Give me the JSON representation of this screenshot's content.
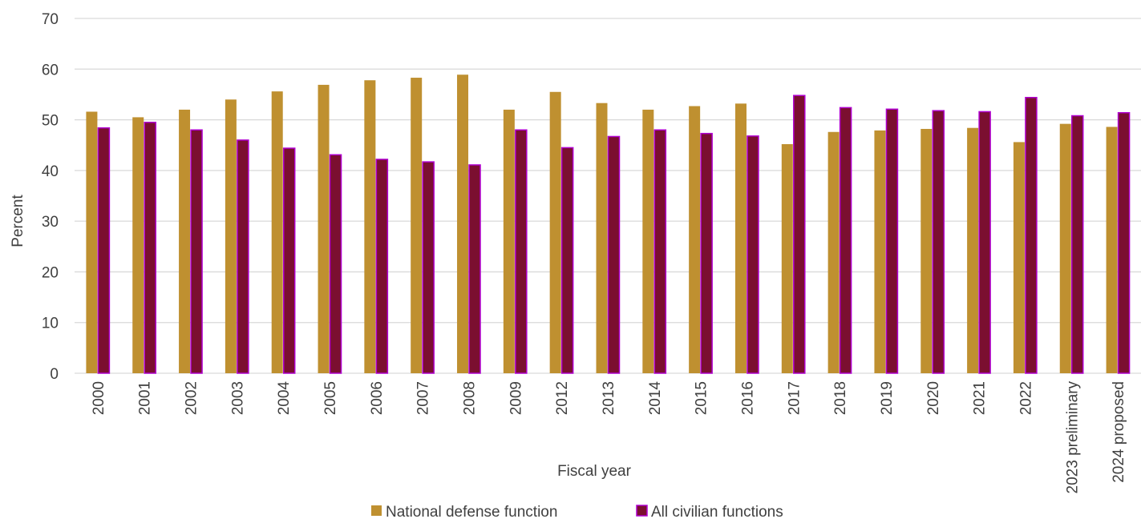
{
  "chart_data": {
    "type": "bar",
    "title": "",
    "xlabel": "Fiscal year",
    "ylabel": "Percent",
    "ylim": [
      0,
      70
    ],
    "yticks": [
      0,
      10,
      20,
      30,
      40,
      50,
      60,
      70
    ],
    "grid": true,
    "legend_position": "bottom",
    "categories": [
      "2000",
      "2001",
      "2002",
      "2003",
      "2004",
      "2005",
      "2006",
      "2007",
      "2008",
      "2009",
      "2012",
      "2013",
      "2014",
      "2015",
      "2016",
      "2017",
      "2018",
      "2019",
      "2020",
      "2021",
      "2022",
      "2023 preliminary",
      "2024 proposed"
    ],
    "series": [
      {
        "name": "National defense function",
        "color": "#BF9030",
        "values": [
          51.6,
          50.5,
          52.0,
          54.0,
          55.6,
          56.9,
          57.8,
          58.3,
          58.9,
          52.0,
          55.5,
          53.3,
          52.0,
          52.7,
          53.2,
          45.2,
          47.6,
          47.9,
          48.2,
          48.4,
          45.6,
          49.2,
          48.6
        ]
      },
      {
        "name": "All civilian functions",
        "color": "#7B0F30",
        "border": "#B000D0",
        "values": [
          48.4,
          49.5,
          48.0,
          46.0,
          44.4,
          43.1,
          42.2,
          41.7,
          41.1,
          48.0,
          44.5,
          46.7,
          48.0,
          47.3,
          46.8,
          54.8,
          52.4,
          52.1,
          51.8,
          51.6,
          54.4,
          50.8,
          51.4
        ]
      }
    ]
  }
}
